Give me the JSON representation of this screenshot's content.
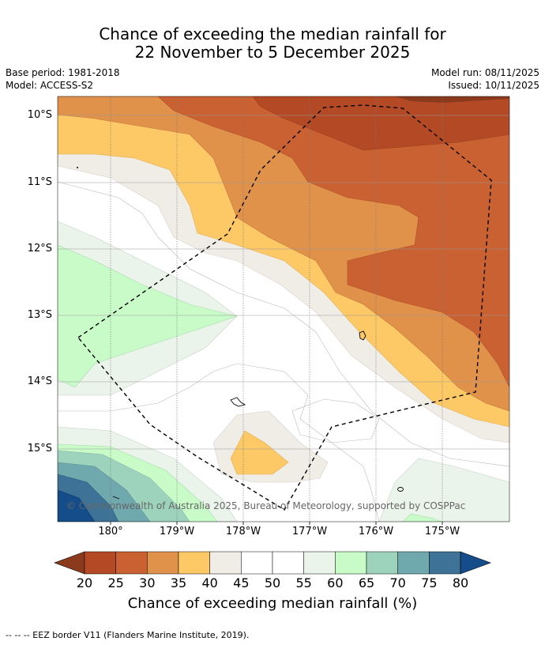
{
  "title": {
    "line1": "Chance of exceeding the median rainfall for",
    "line2": "22 November to 5 December 2025"
  },
  "meta": {
    "base_period": "Base period: 1981-2018",
    "model": "Model: ACCESS-S2",
    "model_run": "Model run: 08/11/2025",
    "issued": "Issued: 10/11/2025"
  },
  "map": {
    "lat_labels": [
      "10°S",
      "11°S",
      "12°S",
      "13°S",
      "14°S",
      "15°S"
    ],
    "lon_labels": [
      "180°",
      "179°W",
      "178°W",
      "177°W",
      "176°W",
      "175°W"
    ],
    "copyright": "© Commonwealth of Australia 2025, Bureau of Meteorology, supported by COSPPac"
  },
  "colorbar": {
    "ticks": [
      "20",
      "25",
      "30",
      "35",
      "40",
      "45",
      "50",
      "55",
      "60",
      "65",
      "70",
      "75",
      "80"
    ],
    "colors": [
      "#8b3a1e",
      "#b34a25",
      "#c96132",
      "#e0914a",
      "#fdc866",
      "#f0ece6",
      "#ffffff",
      "#ffffff",
      "#eaf4ea",
      "#c9fbc9",
      "#9dd2bd",
      "#6fa8ad",
      "#3e7397",
      "#154d8a"
    ],
    "label": "Chance of exceeding median rainfall (%)"
  },
  "footer": "-- -- -- EEZ border V11 (Flanders Marine Institute, 2019)."
}
